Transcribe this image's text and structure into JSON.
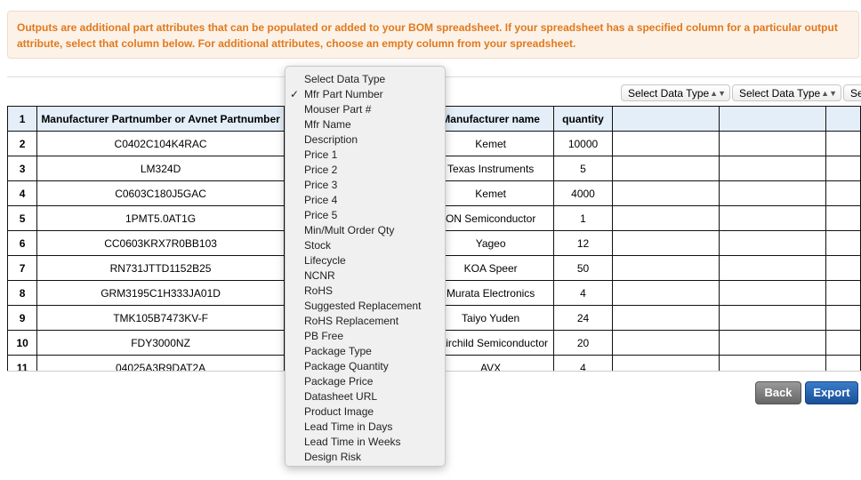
{
  "notice": "Outputs are additional part attributes that can be populated or added to your BOM spreadsheet. If your spreadsheet has a specified column for a particular output attribute, select that column below. For additional attributes, choose an empty column from your spreadsheet.",
  "column_selects": [
    "Select Data Type",
    "Select Data Type",
    "Select Data Type"
  ],
  "table": {
    "header": [
      "1",
      "Manufacturer Partnumber or Avnet Partnumber",
      "",
      "Manufacturer name",
      "quantity",
      "",
      "",
      ""
    ],
    "rows": [
      [
        "2",
        "C0402C104K4RAC",
        "",
        "Kemet",
        "10000"
      ],
      [
        "3",
        "LM324D",
        "",
        "Texas Instruments",
        "5"
      ],
      [
        "4",
        "C0603C180J5GAC",
        "",
        "Kemet",
        "4000"
      ],
      [
        "5",
        "1PMT5.0AT1G",
        "",
        "ON Semiconductor",
        "1"
      ],
      [
        "6",
        "CC0603KRX7R0BB103",
        "",
        "Yageo",
        "12"
      ],
      [
        "7",
        "RN731JTTD1152B25",
        "",
        "KOA Speer",
        "50"
      ],
      [
        "8",
        "GRM3195C1H333JA01D",
        "",
        "Murata Electronics",
        "4"
      ],
      [
        "9",
        "TMK105B7473KV-F",
        "",
        "Taiyo Yuden",
        "24"
      ],
      [
        "10",
        "FDY3000NZ",
        "",
        "Fairchild Semiconductor",
        "20"
      ],
      [
        "11",
        "04025A3R9DAT2A",
        "",
        "AVX",
        "4"
      ]
    ]
  },
  "dropdown": {
    "selected": "Mfr Part Number",
    "check": "✓",
    "options": [
      "Select Data Type",
      "Mfr Part Number",
      "Mouser Part #",
      "Mfr Name",
      "Description",
      "Price 1",
      "Price 2",
      "Price 3",
      "Price 4",
      "Price 5",
      "Min/Mult Order Qty",
      "Stock",
      "Lifecycle",
      "NCNR",
      "RoHS",
      "Suggested Replacement",
      "RoHS Replacement",
      "PB Free",
      "Package Type",
      "Package Quantity",
      "Package Price",
      "Datasheet URL",
      "Product Image",
      "Lead Time in Days",
      "Lead Time in Weeks",
      "Design Risk"
    ]
  },
  "buttons": {
    "back": "Back",
    "export": "Export"
  }
}
